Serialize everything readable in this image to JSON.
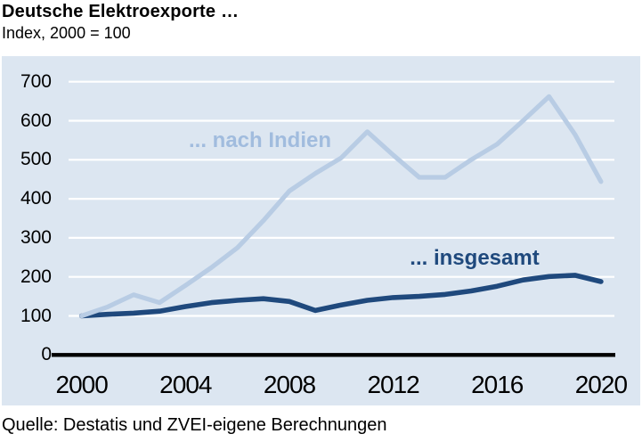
{
  "header": {
    "title": "Deutsche Elektroexporte …",
    "subtitle": "Index, 2000 = 100"
  },
  "footer": {
    "source": "Quelle: Destatis und ZVEI-eigene Berechnungen"
  },
  "colors": {
    "panel_background": "#dce6f1",
    "gridline": "#ffffff",
    "axis": "#000000",
    "nach_indien_line": "#b8cce4",
    "nach_indien_label": "#a1bcde",
    "insgesamt_line": "#1f497d",
    "insgesamt_label": "#1f497d",
    "text": "#000000"
  },
  "chart_data": {
    "type": "line",
    "title": "Deutsche Elektroexporte …",
    "subtitle": "Index, 2000 = 100",
    "x": [
      2000,
      2001,
      2002,
      2003,
      2004,
      2005,
      2006,
      2007,
      2008,
      2009,
      2010,
      2011,
      2012,
      2013,
      2014,
      2015,
      2016,
      2017,
      2018,
      2019,
      2020
    ],
    "series": [
      {
        "name": "... nach Indien",
        "color": "#b8cce4",
        "values": [
          100,
          123,
          154,
          134,
          178,
          224,
          275,
          344,
          420,
          465,
          505,
          572,
          512,
          455,
          455,
          500,
          540,
          600,
          662,
          565,
          444
        ]
      },
      {
        "name": "... insgesamt",
        "color": "#1f497d",
        "values": [
          100,
          104,
          107,
          112,
          124,
          134,
          140,
          144,
          137,
          114,
          128,
          140,
          147,
          150,
          155,
          164,
          176,
          192,
          201,
          204,
          188
        ]
      }
    ],
    "x_ticks": [
      2000,
      2004,
      2008,
      2012,
      2016,
      2020
    ],
    "y_ticks": [
      0,
      100,
      200,
      300,
      400,
      500,
      600,
      700
    ],
    "ylim": [
      0,
      700
    ],
    "xlabel": "",
    "ylabel": "",
    "grid": true,
    "legend": "inline-labels"
  }
}
